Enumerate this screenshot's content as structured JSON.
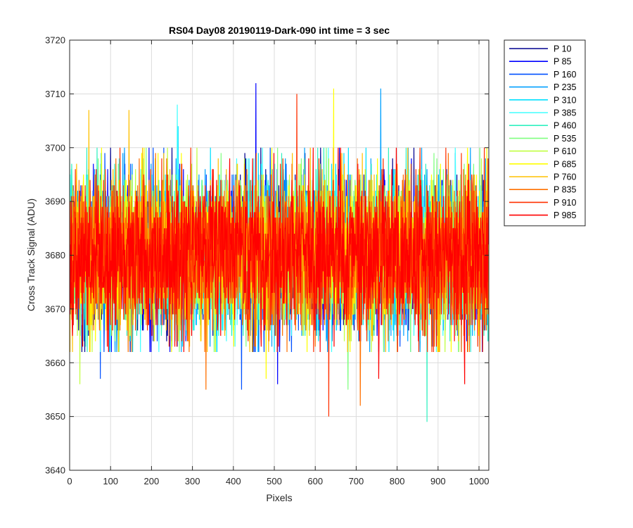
{
  "chart_data": {
    "type": "line",
    "title": "RS04 Day08 20190119-Dark-090 int time = 3 sec",
    "xlabel": "Pixels",
    "ylabel": "Cross Track Signal (ADU)",
    "xlim": [
      0,
      1024
    ],
    "ylim": [
      3640,
      3720
    ],
    "x_ticks": [
      0,
      100,
      200,
      300,
      400,
      500,
      600,
      700,
      800,
      900,
      1000
    ],
    "y_ticks": [
      3640,
      3650,
      3660,
      3670,
      3680,
      3690,
      3700,
      3710,
      3720
    ],
    "grid": true,
    "legend_position": "outside-top-right",
    "noise_model": {
      "mean": 3680,
      "std": 7,
      "x_count": 1024
    },
    "series": [
      {
        "name": "P 10",
        "color": "#00008f",
        "notable_points": []
      },
      {
        "name": "P 85",
        "color": "#0000ff",
        "notable_points": [
          [
            455,
            3712
          ],
          [
            508,
            3656
          ]
        ]
      },
      {
        "name": "P 160",
        "color": "#0050ff",
        "notable_points": [
          [
            420,
            3655
          ],
          [
            75,
            3657
          ]
        ]
      },
      {
        "name": "P 235",
        "color": "#00a0ff",
        "notable_points": [
          [
            760,
            3711
          ]
        ]
      },
      {
        "name": "P 310",
        "color": "#00e0ff",
        "notable_points": [
          [
            265,
            3704
          ]
        ]
      },
      {
        "name": "P 385",
        "color": "#40ffff",
        "notable_points": [
          [
            263,
            3708
          ]
        ]
      },
      {
        "name": "P 460",
        "color": "#30f0c0",
        "notable_points": [
          [
            873,
            3649
          ]
        ]
      },
      {
        "name": "P 535",
        "color": "#80ff80",
        "notable_points": [
          [
            680,
            3655
          ]
        ]
      },
      {
        "name": "P 610",
        "color": "#c0ff40",
        "notable_points": [
          [
            25,
            3656
          ]
        ]
      },
      {
        "name": "P 685",
        "color": "#ffff00",
        "notable_points": [
          [
            645,
            3711
          ],
          [
            480,
            3657
          ]
        ]
      },
      {
        "name": "P 760",
        "color": "#ffc000",
        "notable_points": [
          [
            145,
            3707
          ],
          [
            47,
            3707
          ]
        ]
      },
      {
        "name": "P 835",
        "color": "#ff7000",
        "notable_points": [
          [
            710,
            3652
          ],
          [
            333,
            3655
          ]
        ]
      },
      {
        "name": "P 910",
        "color": "#ff3000",
        "notable_points": [
          [
            555,
            3710
          ],
          [
            633,
            3650
          ]
        ]
      },
      {
        "name": "P 985",
        "color": "#ff0000",
        "notable_points": [
          [
            755,
            3657
          ],
          [
            965,
            3656
          ]
        ]
      }
    ]
  }
}
